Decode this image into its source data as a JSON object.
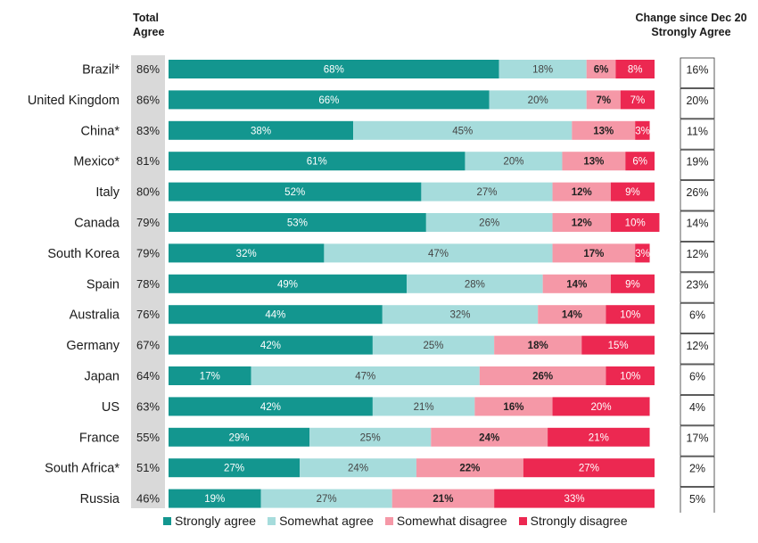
{
  "headers": {
    "total_line1": "Total",
    "total_line2": "Agree",
    "change_line1": "Change since Dec 20",
    "change_line2": "Strongly Agree"
  },
  "colors": {
    "strongly_agree": "#13968f",
    "somewhat_agree": "#a6dcdc",
    "somewhat_disagree": "#f598a7",
    "strongly_disagree": "#ec2851"
  },
  "chart_data": {
    "type": "bar",
    "orientation": "horizontal",
    "stacked": true,
    "categories": [
      "Brazil*",
      "United Kingdom",
      "China*",
      "Mexico*",
      "Italy",
      "Canada",
      "South Korea",
      "Spain",
      "Australia",
      "Germany",
      "Japan",
      "US",
      "France",
      "South Africa*",
      "Russia"
    ],
    "series": [
      {
        "name": "Strongly agree",
        "values": [
          68,
          66,
          38,
          61,
          52,
          53,
          32,
          49,
          44,
          42,
          17,
          42,
          29,
          27,
          19
        ]
      },
      {
        "name": "Somewhat agree",
        "values": [
          18,
          20,
          45,
          20,
          27,
          26,
          47,
          28,
          32,
          25,
          47,
          21,
          25,
          24,
          27
        ]
      },
      {
        "name": "Somewhat disagree",
        "values": [
          6,
          7,
          13,
          13,
          12,
          12,
          17,
          14,
          14,
          18,
          26,
          16,
          24,
          22,
          21
        ]
      },
      {
        "name": "Strongly disagree",
        "values": [
          8,
          7,
          3,
          6,
          9,
          10,
          3,
          9,
          10,
          15,
          10,
          20,
          21,
          27,
          33
        ]
      }
    ],
    "total_agree": [
      "86%",
      "86%",
      "83%",
      "81%",
      "80%",
      "79%",
      "79%",
      "78%",
      "76%",
      "67%",
      "64%",
      "63%",
      "55%",
      "51%",
      "46%"
    ],
    "change_strongly_agree": [
      "16%",
      "20%",
      "11%",
      "19%",
      "26%",
      "14%",
      "12%",
      "23%",
      "6%",
      "12%",
      "6%",
      "4%",
      "17%",
      "2%",
      "5%"
    ],
    "legend_position": "bottom",
    "unit": "%"
  }
}
